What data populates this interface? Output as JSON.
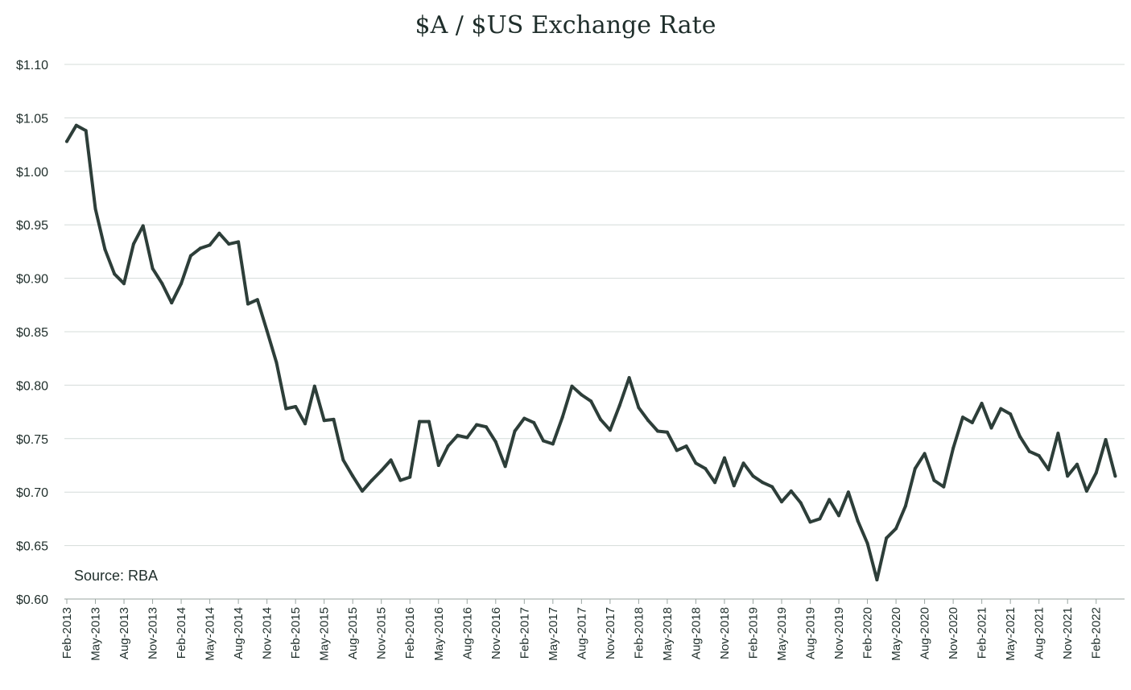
{
  "chart_data": {
    "type": "line",
    "title": "$A / $US Exchange Rate",
    "xlabel": "",
    "ylabel": "",
    "ylim": [
      0.6,
      1.1
    ],
    "y_ticks": [
      0.6,
      0.65,
      0.7,
      0.75,
      0.8,
      0.85,
      0.9,
      0.95,
      1.0,
      1.05,
      1.1
    ],
    "y_tick_labels": [
      "$0.60",
      "$0.65",
      "$0.70",
      "$0.75",
      "$0.80",
      "$0.85",
      "$0.90",
      "$0.95",
      "$1.00",
      "$1.05",
      "$1.10"
    ],
    "x_tick_labels": [
      "Feb-2013",
      "May-2013",
      "Aug-2013",
      "Nov-2013",
      "Feb-2014",
      "May-2014",
      "Aug-2014",
      "Nov-2014",
      "Feb-2015",
      "May-2015",
      "Aug-2015",
      "Nov-2015",
      "Feb-2016",
      "May-2016",
      "Aug-2016",
      "Nov-2016",
      "Feb-2017",
      "May-2017",
      "Aug-2017",
      "Nov-2017",
      "Feb-2018",
      "May-2018",
      "Aug-2018",
      "Nov-2018",
      "Feb-2019",
      "May-2019",
      "Aug-2019",
      "Nov-2019",
      "Feb-2020",
      "May-2020",
      "Aug-2020",
      "Nov-2020",
      "Feb-2021",
      "May-2021",
      "Aug-2021",
      "Nov-2021",
      "Feb-2022"
    ],
    "grid": true,
    "annotation": "Source: RBA",
    "series": [
      {
        "color": "#2d3e39",
        "x": [
          "2013-02",
          "2013-03",
          "2013-04",
          "2013-05",
          "2013-06",
          "2013-07",
          "2013-08",
          "2013-09",
          "2013-10",
          "2013-11",
          "2013-12",
          "2014-01",
          "2014-02",
          "2014-03",
          "2014-04",
          "2014-05",
          "2014-06",
          "2014-07",
          "2014-08",
          "2014-09",
          "2014-10",
          "2014-11",
          "2014-12",
          "2015-01",
          "2015-02",
          "2015-03",
          "2015-04",
          "2015-05",
          "2015-06",
          "2015-07",
          "2015-08",
          "2015-09",
          "2015-10",
          "2015-11",
          "2015-12",
          "2016-01",
          "2016-02",
          "2016-03",
          "2016-04",
          "2016-05",
          "2016-06",
          "2016-07",
          "2016-08",
          "2016-09",
          "2016-10",
          "2016-11",
          "2016-12",
          "2017-01",
          "2017-02",
          "2017-03",
          "2017-04",
          "2017-05",
          "2017-06",
          "2017-07",
          "2017-08",
          "2017-09",
          "2017-10",
          "2017-11",
          "2017-12",
          "2018-01",
          "2018-02",
          "2018-03",
          "2018-04",
          "2018-05",
          "2018-06",
          "2018-07",
          "2018-08",
          "2018-09",
          "2018-10",
          "2018-11",
          "2018-12",
          "2019-01",
          "2019-02",
          "2019-03",
          "2019-04",
          "2019-05",
          "2019-06",
          "2019-07",
          "2019-08",
          "2019-09",
          "2019-10",
          "2019-11",
          "2019-12",
          "2020-01",
          "2020-02",
          "2020-03",
          "2020-04",
          "2020-05",
          "2020-06",
          "2020-07",
          "2020-08",
          "2020-09",
          "2020-10",
          "2020-11",
          "2020-12",
          "2021-01",
          "2021-02",
          "2021-03",
          "2021-04",
          "2021-05",
          "2021-06",
          "2021-07",
          "2021-08",
          "2021-09",
          "2021-10",
          "2021-11",
          "2021-12",
          "2022-01",
          "2022-02",
          "2022-03",
          "2022-04"
        ],
        "values": [
          1.028,
          1.043,
          1.038,
          0.965,
          0.927,
          0.904,
          0.895,
          0.932,
          0.949,
          0.909,
          0.895,
          0.877,
          0.895,
          0.921,
          0.928,
          0.931,
          0.942,
          0.932,
          0.934,
          0.876,
          0.88,
          0.851,
          0.821,
          0.778,
          0.78,
          0.764,
          0.799,
          0.767,
          0.768,
          0.73,
          0.715,
          0.701,
          0.711,
          0.72,
          0.73,
          0.711,
          0.714,
          0.766,
          0.766,
          0.725,
          0.743,
          0.753,
          0.751,
          0.763,
          0.761,
          0.747,
          0.724,
          0.757,
          0.769,
          0.765,
          0.748,
          0.745,
          0.77,
          0.799,
          0.791,
          0.785,
          0.768,
          0.758,
          0.781,
          0.807,
          0.779,
          0.767,
          0.757,
          0.756,
          0.739,
          0.743,
          0.727,
          0.722,
          0.709,
          0.732,
          0.706,
          0.727,
          0.715,
          0.709,
          0.705,
          0.691,
          0.701,
          0.69,
          0.672,
          0.675,
          0.693,
          0.678,
          0.7,
          0.673,
          0.652,
          0.618,
          0.657,
          0.666,
          0.687,
          0.722,
          0.736,
          0.711,
          0.705,
          0.741,
          0.77,
          0.765,
          0.783,
          0.76,
          0.778,
          0.773,
          0.752,
          0.738,
          0.734,
          0.721,
          0.755,
          0.715,
          0.726,
          0.701,
          0.718,
          0.749,
          0.715
        ]
      }
    ]
  }
}
